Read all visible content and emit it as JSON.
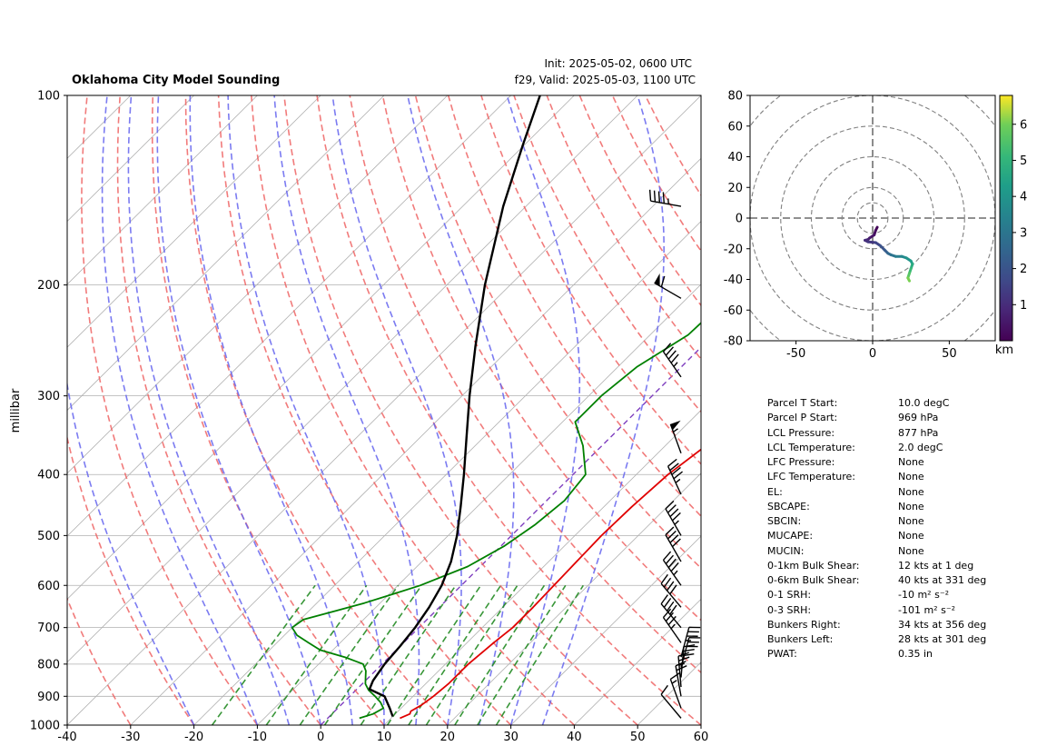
{
  "chart_data": [
    {
      "type": "line",
      "subtype": "skew-t-log-p",
      "title": "Oklahoma City Model Sounding",
      "init_text": "Init: 2025-05-02, 0600 UTC",
      "valid_text": "f29, Valid: 2025-05-03, 1100 UTC",
      "ylabel": "millibar",
      "xlabel": "",
      "xlim": [
        -40,
        60
      ],
      "ylim": [
        1000,
        100
      ],
      "y_scale": "log",
      "x_ticks": [
        -40,
        -30,
        -20,
        -10,
        0,
        10,
        20,
        30,
        40,
        50,
        60
      ],
      "y_ticks": [
        1000,
        900,
        800,
        700,
        600,
        500,
        400,
        300,
        200,
        100
      ],
      "grid": true,
      "colors": {
        "temperature": "#e00000",
        "dewpoint": "#008000",
        "parcel": "#000000",
        "dry_adiabat": "#ef6464",
        "moist_adiabat": "#6464ef",
        "mixing_ratio": "#228b22",
        "isotherm_zero": "#7f3fbf"
      },
      "series": [
        {
          "key": "temperature",
          "pressure": [
            975,
            960,
            950,
            930,
            900,
            860,
            800,
            740,
            700,
            650,
            600,
            550,
            500,
            450,
            400,
            350,
            320,
            290,
            260,
            230,
            200,
            160,
            130,
            110,
            100
          ],
          "values": [
            11.4,
            12.3,
            12.0,
            12.7,
            13.2,
            13.6,
            13.6,
            14.2,
            14.8,
            14.8,
            14.6,
            14.4,
            14.2,
            14.4,
            15.0,
            16.8,
            18.5,
            21.0,
            24.0,
            29.0,
            40.5,
            52.0,
            62.0,
            72.0,
            78.0
          ]
        },
        {
          "key": "dewpoint",
          "pressure": [
            975,
            960,
            940,
            920,
            900,
            880,
            860,
            840,
            820,
            800,
            780,
            760,
            740,
            720,
            700,
            680,
            660,
            640,
            620,
            600,
            560,
            520,
            480,
            440,
            400,
            360,
            330,
            300,
            270,
            240,
            200,
            150,
            120,
            100
          ],
          "values": [
            5.0,
            6.5,
            7.2,
            5.8,
            4.0,
            2.0,
            0.5,
            -0.5,
            -1.5,
            -3.0,
            -7.0,
            -12.0,
            -15.0,
            -18.0,
            -20.0,
            -19.5,
            -16.0,
            -12.5,
            -9.5,
            -6.5,
            -2.0,
            0.5,
            2.0,
            2.8,
            2.0,
            -3.0,
            -8.0,
            -8.0,
            -7.0,
            -4.0,
            -3.5,
            -1.0,
            -18.0,
            -17.0
          ]
        },
        {
          "key": "parcel",
          "pressure": [
            969,
            940,
            900,
            877,
            850,
            800,
            750,
            700,
            650,
            600,
            550,
            500,
            450,
            400,
            350,
            300,
            250,
            200,
            150,
            120,
            100
          ],
          "values": [
            10.0,
            8.2,
            5.5,
            2.0,
            1.2,
            0.4,
            0.0,
            -0.6,
            -1.6,
            -3.1,
            -5.4,
            -8.6,
            -12.6,
            -17.2,
            -22.6,
            -28.8,
            -35.8,
            -44.0,
            -53.6,
            -60.2,
            -65.4
          ]
        }
      ],
      "wind_barbs": [
        {
          "pressure": 975,
          "speed_kt": 10,
          "direction_deg": 320
        },
        {
          "pressure": 940,
          "speed_kt": 15,
          "direction_deg": 340
        },
        {
          "pressure": 900,
          "speed_kt": 20,
          "direction_deg": 350
        },
        {
          "pressure": 870,
          "speed_kt": 25,
          "direction_deg": 355
        },
        {
          "pressure": 840,
          "speed_kt": 30,
          "direction_deg": 5
        },
        {
          "pressure": 810,
          "speed_kt": 30,
          "direction_deg": 15
        },
        {
          "pressure": 780,
          "speed_kt": 35,
          "direction_deg": 15
        },
        {
          "pressure": 740,
          "speed_kt": 35,
          "direction_deg": 325
        },
        {
          "pressure": 700,
          "speed_kt": 40,
          "direction_deg": 320
        },
        {
          "pressure": 650,
          "speed_kt": 40,
          "direction_deg": 320
        },
        {
          "pressure": 600,
          "speed_kt": 45,
          "direction_deg": 325
        },
        {
          "pressure": 550,
          "speed_kt": 40,
          "direction_deg": 330
        },
        {
          "pressure": 500,
          "speed_kt": 45,
          "direction_deg": 330
        },
        {
          "pressure": 430,
          "speed_kt": 45,
          "direction_deg": 335
        },
        {
          "pressure": 370,
          "speed_kt": 55,
          "direction_deg": 340
        },
        {
          "pressure": 280,
          "speed_kt": 45,
          "direction_deg": 325
        },
        {
          "pressure": 210,
          "speed_kt": 60,
          "direction_deg": 300
        },
        {
          "pressure": 150,
          "speed_kt": 45,
          "direction_deg": 280
        }
      ],
      "annotations": {
        "dry_adiabat_theta_c": [
          -30,
          -20,
          -10,
          0,
          10,
          20,
          30,
          40,
          50,
          60,
          70,
          80,
          90,
          100,
          110,
          120,
          130,
          140,
          150,
          160
        ],
        "moist_adiabat_start_c": [
          -20,
          -10,
          -5,
          0,
          5,
          10,
          15,
          20,
          25,
          30,
          35
        ],
        "mixing_ratio_gkg": [
          1,
          2,
          3,
          4,
          6,
          8,
          10,
          12,
          16,
          20,
          24
        ],
        "mixing_ratio_top_hpa": 600
      }
    },
    {
      "type": "line",
      "subtype": "hodograph",
      "xlim": [
        -80,
        80
      ],
      "ylim": [
        -80,
        80
      ],
      "x_ticks": [
        -50,
        0,
        50
      ],
      "y_ticks": [
        -80,
        -60,
        -40,
        -20,
        0,
        20,
        40,
        60,
        80
      ],
      "rings": [
        10,
        20,
        40,
        60,
        80,
        100
      ],
      "colorbar_label": "km",
      "colorbar_ticks": [
        1,
        2,
        3,
        4,
        5,
        6
      ],
      "colorbar_range": [
        0,
        6.8
      ],
      "u": [
        3.0,
        2.0,
        1.0,
        -2.0,
        -3.0,
        -5.0,
        -3.0,
        2.0,
        5.0,
        8.0,
        10.0,
        12.0,
        15.0,
        19.0,
        22.0,
        25.0,
        26.0,
        25.0,
        24.0,
        23.0,
        24.0
      ],
      "v": [
        -6.0,
        -8.0,
        -11.0,
        -13.0,
        -14.0,
        -14.5,
        -15.5,
        -16.0,
        -18.0,
        -21.0,
        -23.0,
        -24.0,
        -25.0,
        -25.0,
        -26.0,
        -28.0,
        -30.0,
        -33.0,
        -36.0,
        -39.0,
        -41.0
      ],
      "height_km": [
        0.1,
        0.2,
        0.35,
        0.5,
        0.7,
        0.9,
        1.1,
        1.4,
        1.7,
        2.0,
        2.3,
        2.6,
        2.9,
        3.2,
        3.5,
        3.8,
        4.2,
        4.6,
        5.0,
        5.4,
        5.8
      ]
    }
  ],
  "parameters": [
    {
      "label": "Parcel T Start:",
      "value": "10.0 degC"
    },
    {
      "label": "Parcel P Start:",
      "value": "969 hPa"
    },
    {
      "label": "LCL Pressure:",
      "value": "877 hPa"
    },
    {
      "label": "LCL Temperature:",
      "value": "2.0 degC"
    },
    {
      "label": "LFC Pressure:",
      "value": "None"
    },
    {
      "label": "LFC Temperature:",
      "value": "None"
    },
    {
      "label": "EL:",
      "value": "None"
    },
    {
      "label": "SBCAPE:",
      "value": "None"
    },
    {
      "label": "SBCIN:",
      "value": "None"
    },
    {
      "label": "MUCAPE:",
      "value": "None"
    },
    {
      "label": "MUCIN:",
      "value": "None"
    },
    {
      "label": "0-1km Bulk Shear:",
      "value": "12 kts at 1 deg"
    },
    {
      "label": "0-6km Bulk Shear:",
      "value": "40 kts at 331 deg"
    },
    {
      "label": "0-1 SRH:",
      "value": "-10 m² s⁻²"
    },
    {
      "label": "0-3 SRH:",
      "value": "-101 m² s⁻²"
    },
    {
      "label": "Bunkers Right:",
      "value": "34 kts at 356 deg"
    },
    {
      "label": "Bunkers Left:",
      "value": "28 kts at 301 deg"
    },
    {
      "label": "PWAT:",
      "value": "0.35 in"
    }
  ]
}
